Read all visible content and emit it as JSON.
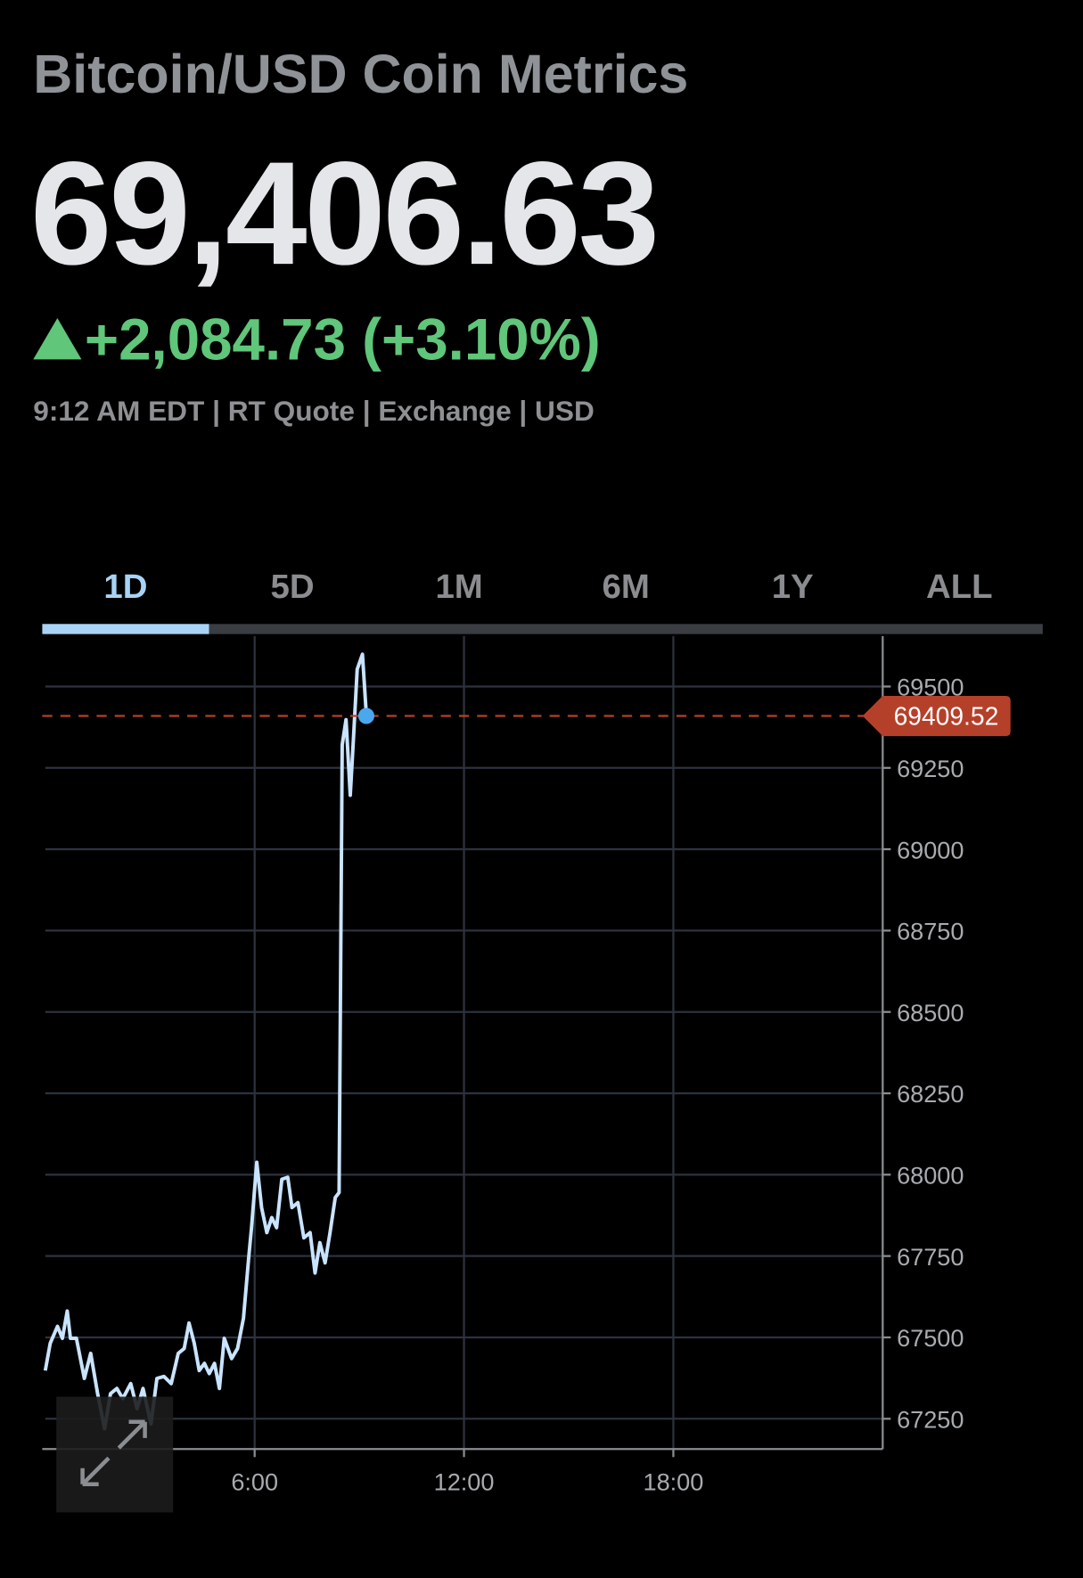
{
  "header": {
    "title": "Bitcoin/USD Coin Metrics",
    "price": "69,406.63",
    "change": "+2,084.73 (+3.10%)",
    "meta": "9:12 AM EDT | RT Quote | Exchange | USD"
  },
  "tabs": {
    "items": [
      "1D",
      "5D",
      "1M",
      "6M",
      "1Y",
      "ALL"
    ],
    "active": 0
  },
  "chart_data": {
    "type": "line",
    "color": "#c9e4ff",
    "x": [
      0,
      0.14,
      0.35,
      0.49,
      0.63,
      0.72,
      0.89,
      1.12,
      1.3,
      1.5,
      1.7,
      1.87,
      2.05,
      2.22,
      2.45,
      2.63,
      2.8,
      3.03,
      3.2,
      3.4,
      3.61,
      3.81,
      3.98,
      4.12,
      4.27,
      4.41,
      4.56,
      4.7,
      4.85,
      4.99,
      5.13,
      5.34,
      5.51,
      5.68,
      5.83,
      5.91,
      6.06,
      6.2,
      6.35,
      6.49,
      6.63,
      6.78,
      6.95,
      7.07,
      7.24,
      7.41,
      7.59,
      7.73,
      7.87,
      8.02,
      8.16,
      8.31,
      8.42,
      8.51,
      8.62,
      8.74,
      8.83,
      8.94,
      9.09,
      9.2
    ],
    "values": [
      67398,
      67482,
      67534,
      67497,
      67581,
      67497,
      67497,
      67374,
      67451,
      67327,
      67219,
      67327,
      67343,
      67312,
      67358,
      67281,
      67343,
      67234,
      67374,
      67380,
      67358,
      67451,
      67466,
      67544,
      67482,
      67398,
      67420,
      67389,
      67420,
      67343,
      67497,
      67435,
      67466,
      67559,
      67745,
      67837,
      68038,
      67899,
      67822,
      67868,
      67837,
      67986,
      67992,
      67899,
      67914,
      67806,
      67822,
      67698,
      67791,
      67729,
      67822,
      67930,
      67945,
      69321,
      69398,
      69166,
      69336,
      69553,
      69599,
      69417
    ],
    "last_value": 69409.52,
    "xlim": [
      0,
      24
    ],
    "xticks": [
      {
        "value": 6,
        "label": "6:00"
      },
      {
        "value": 12,
        "label": "12:00"
      },
      {
        "value": 18,
        "label": "18:00"
      }
    ],
    "ylim": [
      67157,
      69655
    ],
    "yticks": [
      67250,
      67500,
      67750,
      68000,
      68250,
      68500,
      68750,
      69000,
      69250,
      69500
    ],
    "grid": true
  }
}
